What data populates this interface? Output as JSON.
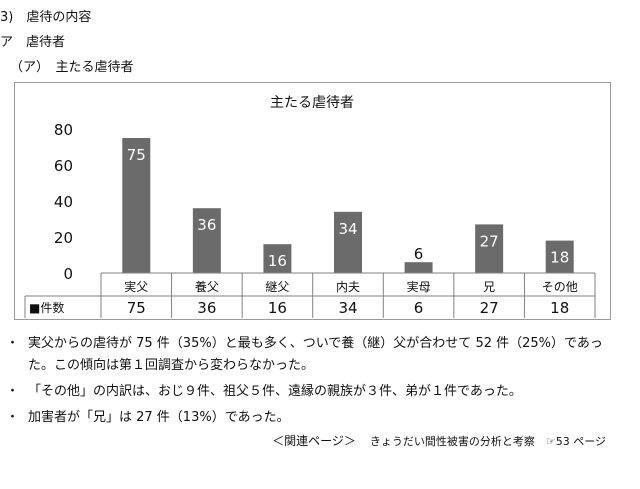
{
  "headings": {
    "section": "3)　虐待の内容",
    "sub": "ア　虐待者",
    "subsub": "（ア）　主たる虐待者"
  },
  "chart_data": {
    "type": "bar",
    "title": "主たる虐待者",
    "categories": [
      "実父",
      "養父",
      "継父",
      "内夫",
      "実母",
      "兄",
      "その他"
    ],
    "series": [
      {
        "name": "件数",
        "values": [
          75,
          36,
          16,
          34,
          6,
          27,
          18
        ]
      }
    ],
    "ylim": [
      0,
      80
    ],
    "yticks": [
      0,
      20,
      40,
      60,
      80
    ],
    "table_row_label": "■件数",
    "bar_color": "#6b6b6b",
    "grid": false
  },
  "bullets": [
    {
      "mark": "・",
      "text": "実父からの虐待が 75 件（35%）と最も多く、ついで養（継）父が合わせて 52 件（25%）であった。この傾向は第１回調査から変わらなかった。"
    },
    {
      "mark": "・",
      "text": "「その他」の内訳は、おじ９件、祖父５件、遠縁の親族が３件、弟が１件であった。"
    },
    {
      "mark": "・",
      "text": "加害者が「兄」は 27 件（13%）であった。"
    }
  ],
  "related": {
    "label": "＜関連ページ＞",
    "text": "きょうだい間性被害の分析と考察　☞53 ページ"
  }
}
